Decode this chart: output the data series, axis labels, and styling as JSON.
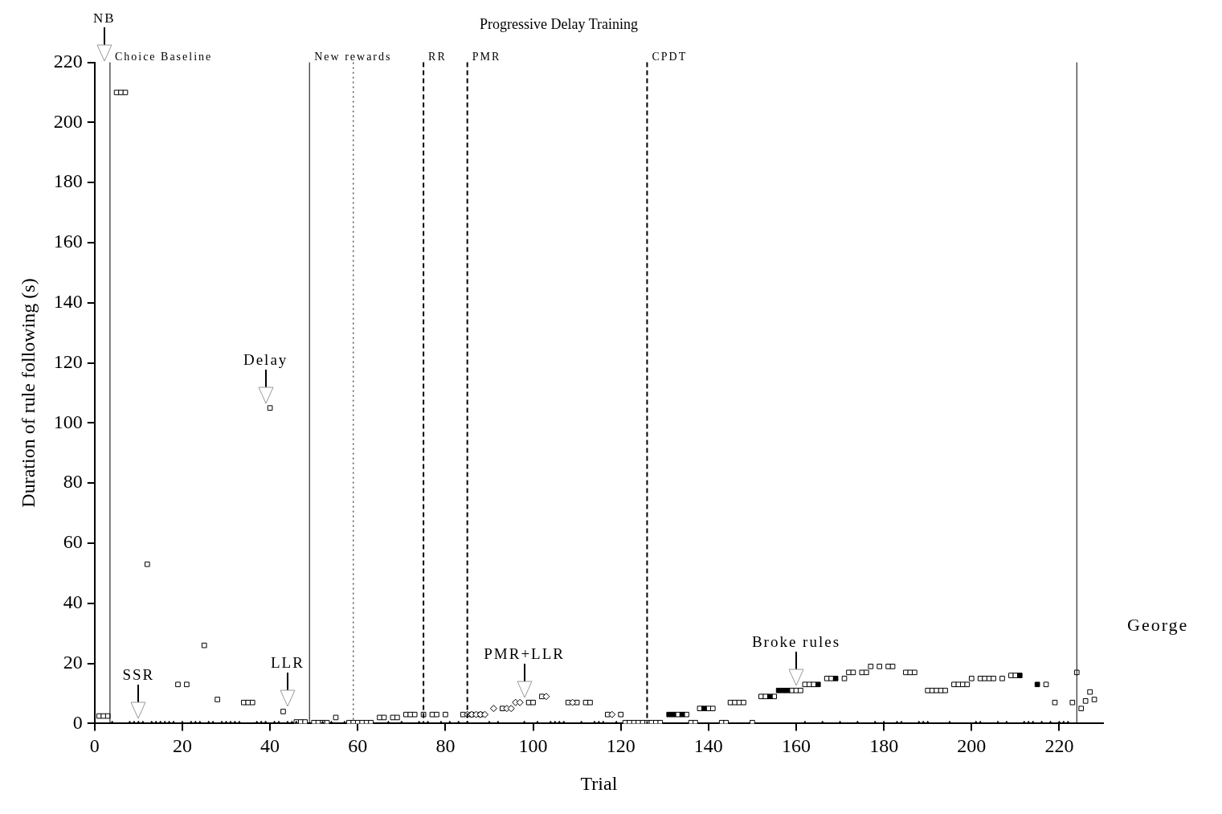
{
  "chart_data": {
    "type": "scatter",
    "title": "Progressive Delay Training",
    "xlabel": "Trial",
    "ylabel": "Duration of rule following (s)",
    "xlim": [
      0,
      230
    ],
    "xticks": [
      0,
      20,
      40,
      60,
      80,
      100,
      120,
      140,
      160,
      180,
      200,
      220
    ],
    "ylim": [
      0,
      220
    ],
    "yticks": [
      0,
      20,
      40,
      60,
      80,
      100,
      120,
      140,
      160,
      180,
      200,
      220
    ],
    "grid": false,
    "legend": false,
    "series": [
      {
        "type": "scatter",
        "marker": "triangle",
        "color": "#000000",
        "x": [
          4,
          8,
          9,
          10,
          11,
          13,
          14,
          15,
          16,
          17,
          18,
          20,
          22,
          23,
          24,
          26,
          27,
          29,
          30,
          31,
          32,
          33,
          37,
          38,
          39,
          41,
          42,
          44,
          45,
          46,
          52,
          54,
          57,
          67,
          70,
          74,
          76,
          79,
          81,
          83,
          85,
          90,
          92,
          98,
          101,
          104,
          105,
          106,
          107,
          111,
          114,
          115,
          116,
          119,
          162,
          166,
          170,
          174,
          178,
          180,
          183,
          184,
          188,
          189,
          190,
          195,
          201,
          202,
          206,
          208,
          212,
          213,
          214,
          216,
          218,
          220,
          221,
          222
        ],
        "values": [
          0,
          0,
          0,
          0,
          0,
          0,
          0,
          0,
          0,
          0,
          0,
          0,
          0,
          0,
          0,
          0,
          0,
          0,
          0,
          0,
          0,
          0,
          0,
          0,
          0,
          0,
          0,
          0,
          0,
          0,
          0,
          0,
          0,
          0,
          0,
          0,
          0,
          0,
          0,
          0,
          0,
          0,
          0,
          0,
          0,
          0,
          0,
          0,
          0,
          0,
          0,
          0,
          0,
          0,
          0,
          0,
          0,
          0,
          0,
          0,
          0,
          0,
          0,
          0,
          0,
          0,
          0,
          0,
          0,
          0,
          0,
          0,
          0,
          0,
          0,
          0,
          0,
          0
        ]
      },
      {
        "type": "scatter",
        "marker": "square",
        "color": "#ffffff",
        "x": [
          1,
          2,
          3,
          5,
          6,
          7,
          12,
          19,
          21,
          25,
          28,
          34,
          35,
          36,
          40,
          43,
          46,
          47,
          48,
          50,
          51,
          52,
          53,
          55,
          58,
          59,
          60,
          61,
          62,
          63,
          65,
          66,
          68,
          69,
          71,
          72,
          73,
          75,
          77,
          78,
          80,
          84,
          86,
          88,
          93,
          99,
          100,
          102,
          108,
          110,
          112,
          113,
          117,
          120,
          121,
          122,
          123,
          124,
          125,
          126,
          127,
          128,
          129,
          133,
          135,
          136,
          137,
          138,
          140,
          141,
          143,
          144,
          145,
          146,
          147,
          148,
          150,
          152,
          153,
          155,
          159,
          160,
          161,
          162,
          163,
          164,
          167,
          168,
          171,
          172,
          173,
          175,
          176,
          177,
          179,
          181,
          182,
          185,
          186,
          187,
          190,
          191,
          192,
          193,
          194,
          196,
          197,
          198,
          199,
          200,
          202,
          203,
          204,
          205,
          207,
          209,
          210,
          217,
          219,
          223,
          224,
          225,
          226,
          227,
          228
        ],
        "values": [
          2.5,
          2.5,
          2.5,
          210,
          210,
          210,
          53,
          13,
          13,
          26,
          8,
          7,
          7,
          7,
          105,
          4,
          0.5,
          0.5,
          0.5,
          0.3,
          0.3,
          0.3,
          0.3,
          2,
          0.3,
          0.3,
          0.3,
          0.3,
          0.3,
          0.3,
          2,
          2,
          2,
          2,
          3,
          3,
          3,
          3,
          3,
          3,
          3,
          3,
          3,
          3,
          5,
          7,
          7,
          9,
          7,
          7,
          7,
          7,
          3,
          3,
          0.3,
          0.3,
          0.3,
          0.3,
          0.3,
          0.3,
          0.3,
          0.3,
          0.3,
          3,
          3,
          0.3,
          0.3,
          5,
          5,
          5,
          0.3,
          0.3,
          7,
          7,
          7,
          7,
          0.3,
          9,
          9,
          9,
          11,
          11,
          11,
          13,
          13,
          13,
          15,
          15,
          15,
          17,
          17,
          17,
          17,
          19,
          19,
          19,
          19,
          17,
          17,
          17,
          11,
          11,
          11,
          11,
          11,
          13,
          13,
          13,
          13,
          15,
          15,
          15,
          15,
          15,
          15,
          16,
          16,
          13,
          7,
          7,
          17,
          5,
          7.5,
          10.5,
          8
        ]
      },
      {
        "type": "scatter",
        "marker": "square",
        "color": "#000000",
        "x": [
          131,
          132,
          134,
          139,
          154,
          156,
          157,
          158,
          165,
          169,
          211,
          215
        ],
        "values": [
          3,
          3,
          3,
          5,
          9,
          11,
          11,
          11,
          13,
          15,
          16,
          13
        ]
      },
      {
        "type": "scatter",
        "marker": "diamond",
        "color": "#ffffff",
        "x": [
          85,
          86,
          87,
          88,
          89,
          91,
          94,
          95,
          96,
          97,
          103,
          109,
          118
        ],
        "values": [
          3,
          3,
          3,
          3,
          3,
          5,
          5,
          5,
          7,
          7,
          9,
          7,
          3
        ]
      }
    ],
    "ref_lines": [
      {
        "axis": "x",
        "value": 3.5,
        "line_style": "solid",
        "label": "Choice Baseline"
      },
      {
        "axis": "x",
        "value": 49,
        "line_style": "solid",
        "label": "New rewards"
      },
      {
        "axis": "x",
        "value": 59,
        "line_style": "dotted"
      },
      {
        "axis": "x",
        "value": 75,
        "line_style": "dashed",
        "label": "RR"
      },
      {
        "axis": "x",
        "value": 85,
        "line_style": "dashed",
        "label": "PMR"
      },
      {
        "axis": "x",
        "value": 126,
        "line_style": "dashed",
        "label": "CPDT"
      },
      {
        "axis": "x",
        "value": 224,
        "line_style": "solid"
      }
    ],
    "annotations": [
      "NB",
      {
        "text": "Delay",
        "x": 39,
        "y": 105
      },
      {
        "text": "SSR",
        "x": 10,
        "y": 0
      },
      {
        "text": "LLR",
        "x": 44,
        "y": 4
      },
      {
        "text": "PMR+LLR",
        "x": 98,
        "y": 7
      },
      {
        "text": "Broke rules",
        "x": 160,
        "y": 11
      },
      "George"
    ]
  }
}
